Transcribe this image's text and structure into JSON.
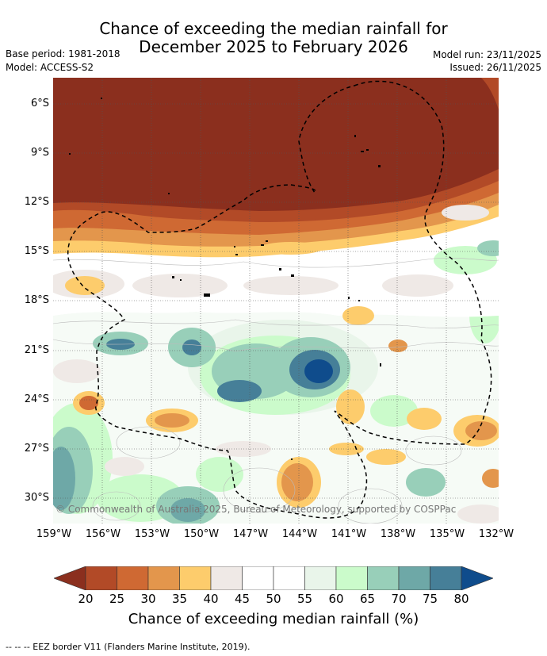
{
  "title": {
    "line1": "Chance of exceeding the median rainfall for",
    "line2": "December 2025 to February 2026"
  },
  "meta": {
    "base_period": "Base period: 1981-2018",
    "model": "Model: ACCESS-S2",
    "model_run": "Model run: 23/11/2025",
    "issued": "Issued: 26/11/2025"
  },
  "map": {
    "lat_labels": [
      "6°S",
      "9°S",
      "12°S",
      "15°S",
      "18°S",
      "21°S",
      "24°S",
      "27°S",
      "30°S"
    ],
    "lon_labels": [
      "159°W",
      "156°W",
      "153°W",
      "150°W",
      "147°W",
      "144°W",
      "141°W",
      "138°W",
      "135°W",
      "132°W"
    ],
    "copyright": "© Commonwealth of Australia 2025, Bureau of Meteorology, supported by COSPPac"
  },
  "colorbar": {
    "ticks": [
      "20",
      "25",
      "30",
      "35",
      "40",
      "45",
      "50",
      "55",
      "60",
      "65",
      "70",
      "75",
      "80"
    ],
    "label": "Chance of exceeding median rainfall (%)",
    "colors": [
      "#8b2f1e",
      "#b24a27",
      "#cf6933",
      "#e3964c",
      "#fdcc6c",
      "#efe9e6",
      "#ffffff",
      "#ffffff",
      "#e9f5ea",
      "#cbfbcb",
      "#98cfb9",
      "#6ea8a7",
      "#467f98",
      "#0f4c8c"
    ]
  },
  "footer": {
    "eez_note": "--  --  -- EEZ border V11 (Flanders Marine Institute, 2019)."
  }
}
